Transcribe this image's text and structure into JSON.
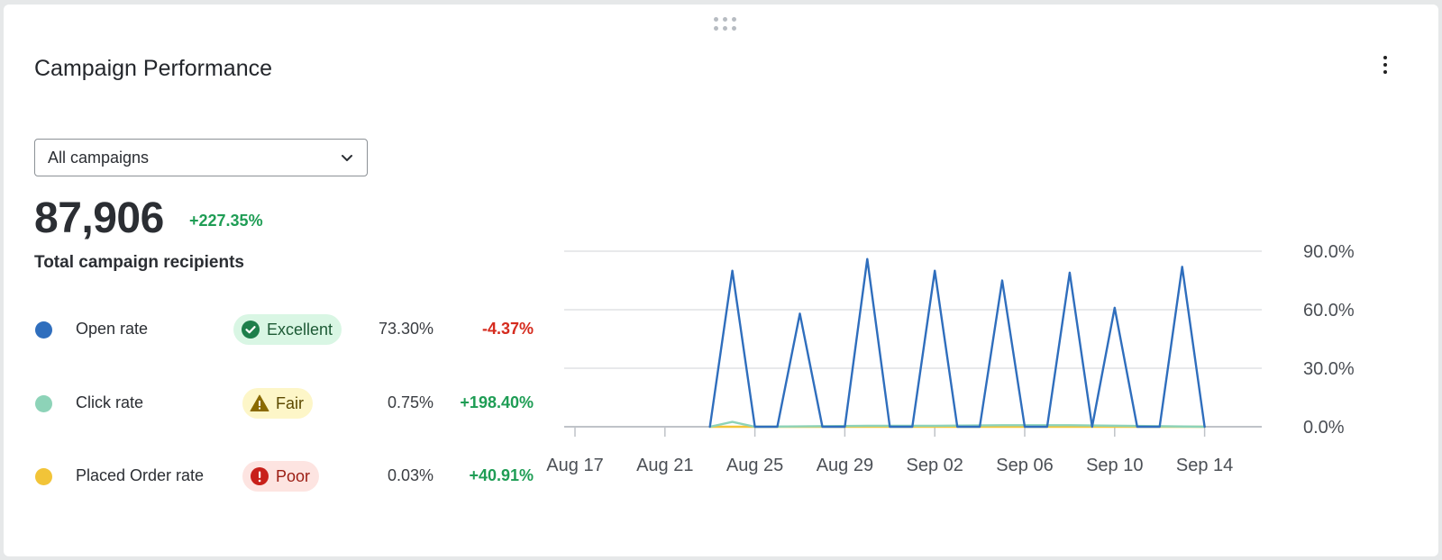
{
  "card": {
    "title": "Campaign Performance",
    "menu_icon": "kebab-menu-icon",
    "drag_icon": "drag-handle-icon"
  },
  "filter": {
    "selected": "All campaigns",
    "icon": "chevron-down-icon"
  },
  "summary": {
    "total": "87,906",
    "change": "+227.35%",
    "label": "Total campaign recipients"
  },
  "metrics": [
    {
      "name": "Open rate",
      "dot_color": "#2f6ebd",
      "status": "Excellent",
      "status_icon": "check-circle-icon",
      "value": "73.30%",
      "change": "-4.37%",
      "change_sign": "negative"
    },
    {
      "name": "Click rate",
      "dot_color": "#8dd3b8",
      "status": "Fair",
      "status_icon": "warning-triangle-icon",
      "value": "0.75%",
      "change": "+198.40%",
      "change_sign": "positive"
    },
    {
      "name": "Placed Order rate",
      "dot_color": "#f2c438",
      "status": "Poor",
      "status_icon": "alert-circle-icon",
      "value": "0.03%",
      "change": "+40.91%",
      "change_sign": "positive"
    }
  ],
  "colors": {
    "open": "#2f6ebd",
    "click": "#8dd3b8",
    "order": "#f2c438",
    "positive": "#1f9d55",
    "negative": "#d52b1e"
  },
  "chart_data": {
    "type": "line",
    "x_start": "2023-08-17",
    "x_tick_labels": [
      "Aug 17",
      "Aug 21",
      "Aug 25",
      "Aug 29",
      "Sep 02",
      "Sep 06",
      "Sep 10",
      "Sep 14"
    ],
    "y_tick_labels": [
      "90.0%",
      "60.0%",
      "30.0%",
      "0.0%"
    ],
    "ylim": [
      0,
      90
    ],
    "grid": true,
    "y_axis_side": "right",
    "series": [
      {
        "name": "Open rate",
        "color": "#2f6ebd",
        "points": [
          [
            "2023-08-23",
            0
          ],
          [
            "2023-08-24",
            80
          ],
          [
            "2023-08-25",
            0
          ],
          [
            "2023-08-26",
            0
          ],
          [
            "2023-08-27",
            58
          ],
          [
            "2023-08-28",
            0
          ],
          [
            "2023-08-29",
            0
          ],
          [
            "2023-08-30",
            86
          ],
          [
            "2023-08-31",
            0
          ],
          [
            "2023-09-01",
            0
          ],
          [
            "2023-09-02",
            80
          ],
          [
            "2023-09-03",
            0
          ],
          [
            "2023-09-04",
            0
          ],
          [
            "2023-09-05",
            75
          ],
          [
            "2023-09-06",
            0
          ],
          [
            "2023-09-07",
            0
          ],
          [
            "2023-09-08",
            79
          ],
          [
            "2023-09-09",
            0
          ],
          [
            "2023-09-10",
            61
          ],
          [
            "2023-09-11",
            0
          ],
          [
            "2023-09-12",
            0
          ],
          [
            "2023-09-13",
            82
          ],
          [
            "2023-09-14",
            0
          ]
        ]
      },
      {
        "name": "Click rate",
        "color": "#8dd3b8",
        "points": [
          [
            "2023-08-23",
            0
          ],
          [
            "2023-08-24",
            2.5
          ],
          [
            "2023-08-25",
            0
          ],
          [
            "2023-08-30",
            0.5
          ],
          [
            "2023-09-02",
            0.5
          ],
          [
            "2023-09-05",
            0.8
          ],
          [
            "2023-09-08",
            0.8
          ],
          [
            "2023-09-14",
            0
          ]
        ]
      },
      {
        "name": "Placed Order rate",
        "color": "#f2c438",
        "points": [
          [
            "2023-08-23",
            0
          ],
          [
            "2023-09-14",
            0
          ]
        ]
      }
    ]
  }
}
